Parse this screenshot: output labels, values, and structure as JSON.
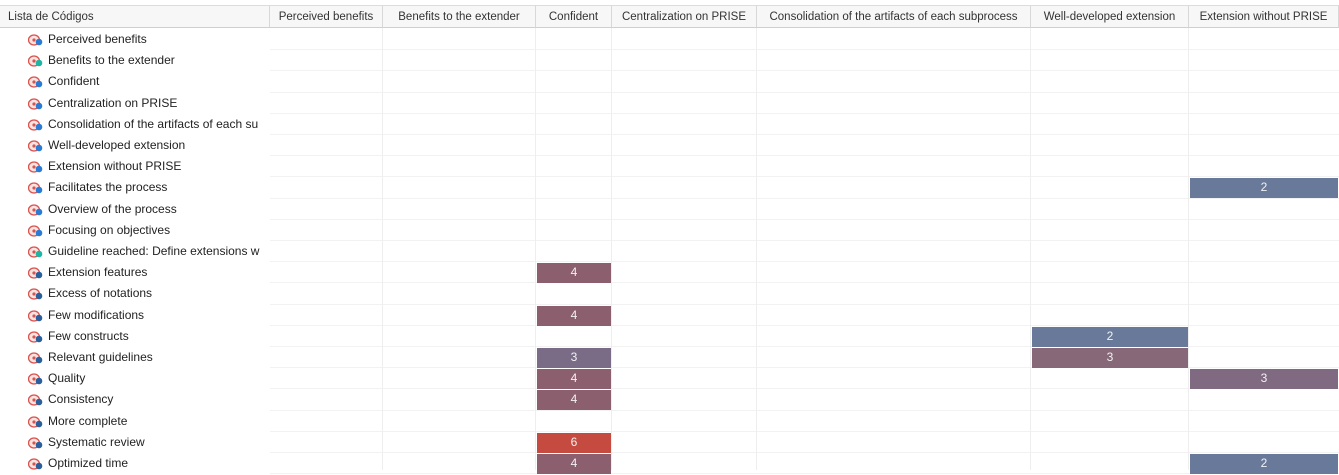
{
  "table": {
    "corner": "Lista de Códigos",
    "columns": [
      "Perceived benefits",
      "Benefits to the extender",
      "Confident",
      "Centralization on PRISE",
      "Consolidation of the artifacts of each subprocess",
      "Well-developed extension",
      "Extension without PRISE"
    ],
    "rows": [
      {
        "label": "Perceived benefits",
        "cells": [
          null,
          null,
          null,
          null,
          null,
          null,
          null
        ]
      },
      {
        "label": "Benefits to the extender",
        "cells": [
          null,
          null,
          null,
          null,
          null,
          null,
          null
        ]
      },
      {
        "label": "Confident",
        "cells": [
          null,
          null,
          null,
          null,
          null,
          null,
          null
        ]
      },
      {
        "label": "Centralization on PRISE",
        "cells": [
          null,
          null,
          null,
          null,
          null,
          null,
          null
        ]
      },
      {
        "label": "Consolidation of the artifacts of each su",
        "cells": [
          null,
          null,
          null,
          null,
          null,
          null,
          null
        ]
      },
      {
        "label": "Well-developed extension",
        "cells": [
          null,
          null,
          null,
          null,
          null,
          null,
          null
        ]
      },
      {
        "label": "Extension without PRISE",
        "cells": [
          null,
          null,
          null,
          null,
          null,
          null,
          null
        ]
      },
      {
        "label": "Facilitates the process",
        "cells": [
          null,
          null,
          null,
          null,
          null,
          null,
          {
            "value": 2,
            "color": "#69799a"
          }
        ]
      },
      {
        "label": "Overview of the process",
        "cells": [
          null,
          null,
          null,
          null,
          null,
          null,
          null
        ]
      },
      {
        "label": "Focusing on objectives",
        "cells": [
          null,
          null,
          null,
          null,
          null,
          null,
          null
        ]
      },
      {
        "label": "Guideline reached: Define extensions w",
        "cells": [
          null,
          null,
          null,
          null,
          null,
          null,
          null
        ]
      },
      {
        "label": "Extension features",
        "cells": [
          null,
          null,
          {
            "value": 4,
            "color": "#8c5f6e"
          },
          null,
          null,
          null,
          null
        ]
      },
      {
        "label": "Excess of notations",
        "cells": [
          null,
          null,
          null,
          null,
          null,
          null,
          null
        ]
      },
      {
        "label": "Few modifications",
        "cells": [
          null,
          null,
          {
            "value": 4,
            "color": "#8c5f6e"
          },
          null,
          null,
          null,
          null
        ]
      },
      {
        "label": "Few constructs",
        "cells": [
          null,
          null,
          null,
          null,
          null,
          {
            "value": 2,
            "color": "#69799a"
          },
          null
        ]
      },
      {
        "label": "Relevant guidelines",
        "cells": [
          null,
          null,
          {
            "value": 3,
            "color": "#7a6c86"
          },
          null,
          null,
          {
            "value": 3,
            "color": "#866878"
          },
          null
        ]
      },
      {
        "label": "Quality",
        "cells": [
          null,
          null,
          {
            "value": 4,
            "color": "#8c5f6e"
          },
          null,
          null,
          null,
          {
            "value": 3,
            "color": "#806a82"
          }
        ]
      },
      {
        "label": "Consistency",
        "cells": [
          null,
          null,
          {
            "value": 4,
            "color": "#8c5f6e"
          },
          null,
          null,
          null,
          null
        ]
      },
      {
        "label": "More complete",
        "cells": [
          null,
          null,
          null,
          null,
          null,
          null,
          null
        ]
      },
      {
        "label": "Systematic review",
        "cells": [
          null,
          null,
          {
            "value": 6,
            "color": "#c54b40"
          },
          null,
          null,
          null,
          null
        ]
      },
      {
        "label": "Optimized time",
        "cells": [
          null,
          null,
          {
            "value": 4,
            "color": "#8c5f6e"
          },
          null,
          null,
          null,
          {
            "value": 2,
            "color": "#69799a"
          }
        ]
      }
    ]
  }
}
